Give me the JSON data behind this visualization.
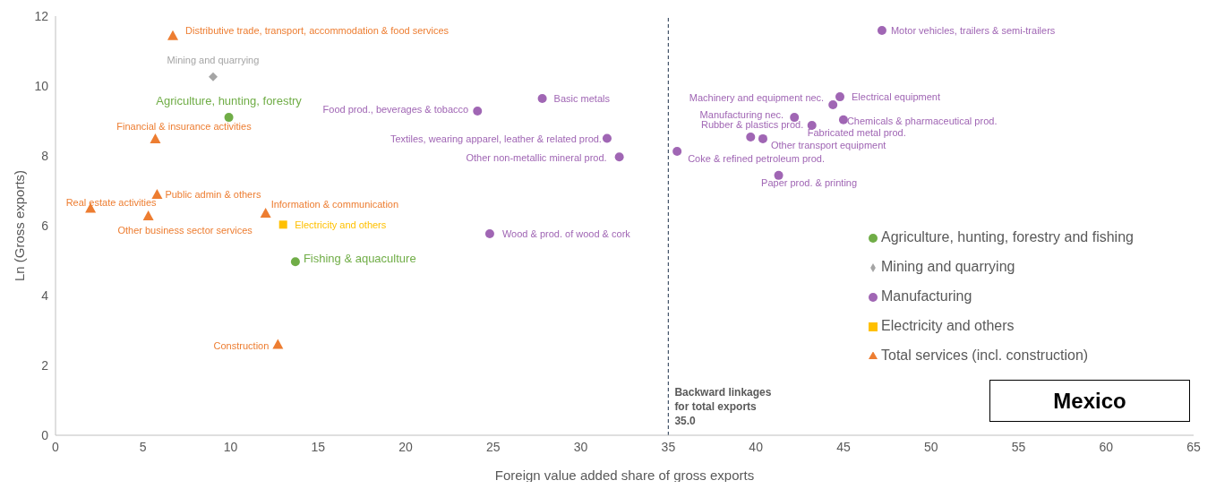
{
  "chart_data": {
    "type": "scatter",
    "xlabel": "Foreign value added share of gross exports",
    "ylabel": "Ln (Gross exports)",
    "xlim": [
      0,
      65
    ],
    "xticks": [
      0,
      5,
      10,
      15,
      20,
      25,
      30,
      35,
      40,
      45,
      50,
      55,
      60,
      65
    ],
    "ylim": [
      0,
      12
    ],
    "yticks": [
      0,
      2,
      4,
      6,
      8,
      10,
      12
    ],
    "grid": false,
    "legend": "right",
    "series": [
      {
        "name": "Agriculture, hunting, forestry and fishing",
        "color": "#70ad47",
        "marker": "circle",
        "x": [
          9.9,
          13.7
        ],
        "values": [
          9.1,
          4.97
        ]
      },
      {
        "name": "Mining and quarrying",
        "color": "#a5a5a5",
        "marker": "diamond",
        "x": [
          9.0
        ],
        "values": [
          10.26
        ]
      },
      {
        "name": "Manufacturing",
        "color": "#a066b4",
        "marker": "circle",
        "x": [
          24.1,
          27.8,
          31.5,
          32.2,
          24.8,
          47.2,
          44.8,
          44.4,
          42.2,
          45.0,
          43.2,
          39.7,
          40.4,
          35.5,
          41.3
        ],
        "values": [
          9.28,
          9.64,
          8.5,
          7.97,
          5.77,
          11.59,
          9.69,
          9.46,
          9.1,
          9.03,
          8.87,
          8.54,
          8.49,
          8.13,
          7.44
        ]
      },
      {
        "name": "Electricity and others",
        "color": "#ffc000",
        "marker": "square",
        "x": [
          13.0
        ],
        "values": [
          6.03
        ]
      },
      {
        "name": "Total services (incl. construction)",
        "color": "#ed7d31",
        "marker": "triangle",
        "x": [
          6.7,
          5.7,
          5.8,
          2.0,
          5.3,
          12.0,
          12.7
        ],
        "values": [
          11.44,
          8.49,
          6.9,
          6.5,
          6.28,
          6.36,
          2.6
        ]
      }
    ],
    "ref_lines": [
      {
        "axis": "x",
        "value": 35,
        "label": "Backward linkages\nfor total exports\n35.0",
        "color": "#44546a",
        "line_style": "dashed"
      }
    ],
    "annotations": [
      {
        "text": "Distributive trade, transport, accommodation & food services",
        "x": 6.7,
        "y": 11.44
      },
      {
        "text": "Mining and quarrying",
        "x": 9.0,
        "y": 10.26
      },
      {
        "text": "Agriculture, hunting, forestry",
        "x": 9.9,
        "y": 9.1
      },
      {
        "text": "Financial & insurance activities",
        "x": 5.7,
        "y": 8.49
      },
      {
        "text": "Public admin & others",
        "x": 5.8,
        "y": 6.9
      },
      {
        "text": "Real estate activities",
        "x": 2.0,
        "y": 6.5
      },
      {
        "text": "Other business sector services",
        "x": 5.3,
        "y": 6.28
      },
      {
        "text": "Information & communication",
        "x": 12.0,
        "y": 6.36
      },
      {
        "text": "Construction",
        "x": 12.7,
        "y": 2.6
      },
      {
        "text": "Electricity and others",
        "x": 13.0,
        "y": 6.03
      },
      {
        "text": "Fishing & aquaculture",
        "x": 13.7,
        "y": 4.97
      },
      {
        "text": "Food prod., beverages & tobacco",
        "x": 24.1,
        "y": 9.28
      },
      {
        "text": "Basic metals",
        "x": 27.8,
        "y": 9.64
      },
      {
        "text": "Textiles, wearing apparel, leather & related prod.",
        "x": 31.5,
        "y": 8.5
      },
      {
        "text": "Other non-metallic mineral prod.",
        "x": 32.2,
        "y": 7.97
      },
      {
        "text": "Wood & prod. of wood & cork",
        "x": 24.8,
        "y": 5.77
      },
      {
        "text": "Motor vehicles, trailers & semi-trailers",
        "x": 47.2,
        "y": 11.59
      },
      {
        "text": "Electrical equipment",
        "x": 44.8,
        "y": 9.69
      },
      {
        "text": "Machinery and equipment nec.",
        "x": 44.4,
        "y": 9.46
      },
      {
        "text": "Manufacturing nec.",
        "x": 42.2,
        "y": 9.1
      },
      {
        "text": "Chemicals & pharmaceutical prod.",
        "x": 45.0,
        "y": 9.03
      },
      {
        "text": "Fabricated metal prod.",
        "x": 43.2,
        "y": 8.87
      },
      {
        "text": "Rubber & plastics prod.",
        "x": 39.7,
        "y": 8.54
      },
      {
        "text": "Other transport equipment",
        "x": 40.4,
        "y": 8.49
      },
      {
        "text": "Coke & refined petroleum prod.",
        "x": 35.5,
        "y": 8.13
      },
      {
        "text": "Paper prod. & printing",
        "x": 41.3,
        "y": 7.44
      },
      "Mexico"
    ]
  }
}
